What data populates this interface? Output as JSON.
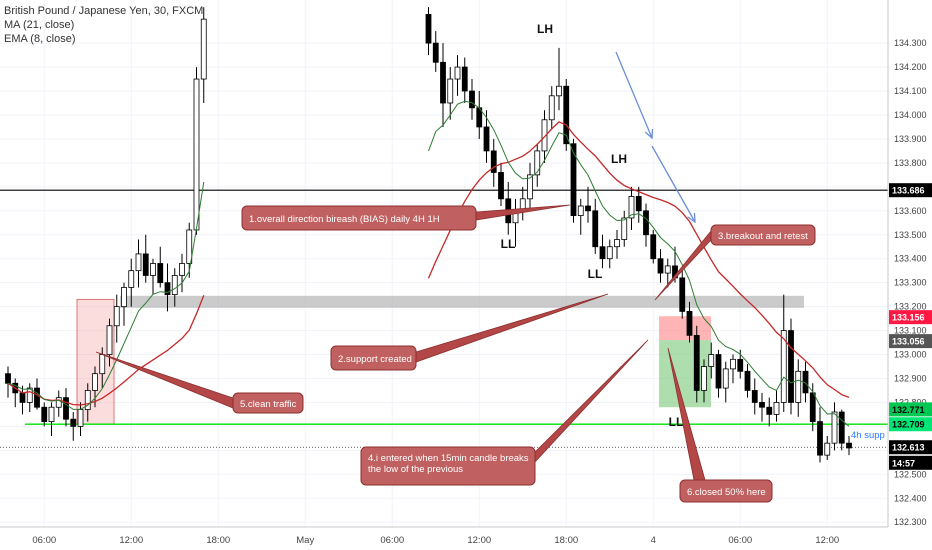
{
  "legend": {
    "symbol": "British Pound / Japanese Yen, 30, FXCM",
    "ma": "MA (21, close)",
    "ema": "EMA (8, close)"
  },
  "chart_data": {
    "type": "candlestick",
    "symbol": "GBP/JPY",
    "timeframe": "30",
    "y_ticks": [
      "134.300",
      "134.200",
      "134.100",
      "134.000",
      "133.900",
      "133.800",
      "133.700",
      "133.600",
      "133.500",
      "133.400",
      "133.300",
      "133.200",
      "133.100",
      "133.000",
      "132.900",
      "132.800",
      "132.700",
      "132.600",
      "132.500",
      "132.400",
      "132.300"
    ],
    "ylim": [
      132.28,
      134.48
    ],
    "x_ticks": [
      "06:00",
      "12:00",
      "18:00",
      "May",
      "06:00",
      "12:00",
      "18:00",
      "4",
      "06:00",
      "12:00"
    ],
    "x_tick_index": [
      5,
      17,
      29,
      41,
      53,
      65,
      77,
      89,
      101,
      113
    ],
    "price_tags": [
      {
        "value": 133.686,
        "text": "133.686",
        "bg": "#000000",
        "fg": "#ffffff"
      },
      {
        "value": 133.156,
        "text": "133.156",
        "bg": "#ff1744",
        "fg": "#ffffff"
      },
      {
        "value": 133.056,
        "text": "133.056",
        "bg": "#555555",
        "fg": "#ffffff"
      },
      {
        "value": 132.771,
        "text": "132.771",
        "bg": "#00c853",
        "fg": "#000000"
      },
      {
        "value": 132.709,
        "text": "132.709",
        "bg": "#00e676",
        "fg": "#000000"
      },
      {
        "value": 132.613,
        "text": "132.613",
        "bg": "#000000",
        "fg": "#ffffff"
      },
      {
        "value": 132.548,
        "text": "14:57",
        "bg": "#000000",
        "fg": "#ffffff"
      }
    ],
    "levels": {
      "resistance": 133.686,
      "support_4h": 132.709,
      "last_price": 132.613,
      "support_4h_label": "4h supp"
    },
    "swing_labels": [
      "LH",
      "LH",
      "LL",
      "LL",
      "LL"
    ],
    "annotations": [
      "1.overall direction bireash (BIAS) daily 4H 1H",
      "2.support created",
      "3.breakout and retest",
      "4.i entered when 15min candle breaks the low of the previous",
      "5.clean traffic",
      "6.closed 50% here"
    ],
    "candles": [
      [
        132.92,
        132.95,
        132.82,
        132.88
      ],
      [
        132.88,
        132.9,
        132.78,
        132.84
      ],
      [
        132.84,
        132.87,
        132.75,
        132.8
      ],
      [
        132.8,
        132.88,
        132.76,
        132.86
      ],
      [
        132.86,
        132.9,
        132.77,
        132.78
      ],
      [
        132.78,
        132.8,
        132.7,
        132.72
      ],
      [
        132.72,
        132.8,
        132.66,
        132.78
      ],
      [
        132.78,
        132.85,
        132.74,
        132.82
      ],
      [
        132.82,
        132.86,
        132.7,
        132.73
      ],
      [
        132.73,
        132.76,
        132.64,
        132.7
      ],
      [
        132.7,
        132.8,
        132.66,
        132.77
      ],
      [
        132.77,
        132.88,
        132.72,
        132.85
      ],
      [
        132.85,
        132.95,
        132.78,
        132.92
      ],
      [
        132.92,
        133.03,
        132.86,
        133.0
      ],
      [
        133.0,
        133.15,
        132.95,
        133.12
      ],
      [
        133.12,
        133.25,
        133.05,
        133.2
      ],
      [
        133.2,
        133.3,
        133.12,
        133.28
      ],
      [
        133.28,
        133.4,
        133.2,
        133.35
      ],
      [
        133.35,
        133.48,
        133.28,
        133.42
      ],
      [
        133.42,
        133.5,
        133.3,
        133.33
      ],
      [
        133.33,
        133.4,
        133.25,
        133.38
      ],
      [
        133.38,
        133.45,
        133.28,
        133.3
      ],
      [
        133.3,
        133.38,
        133.18,
        133.25
      ],
      [
        133.25,
        133.36,
        133.2,
        133.33
      ],
      [
        133.33,
        133.42,
        133.26,
        133.38
      ],
      [
        133.38,
        133.55,
        133.32,
        133.52
      ],
      [
        133.52,
        134.2,
        133.5,
        134.15
      ],
      [
        134.15,
        134.45,
        134.05,
        134.4
      ]
    ],
    "candles_b": [
      [
        134.42,
        134.45,
        134.25,
        134.3
      ],
      [
        134.3,
        134.35,
        134.18,
        134.22
      ],
      [
        134.22,
        134.3,
        133.95,
        134.05
      ],
      [
        134.05,
        134.2,
        133.98,
        134.15
      ],
      [
        134.15,
        134.25,
        134.08,
        134.2
      ],
      [
        134.2,
        134.24,
        134.05,
        134.1
      ],
      [
        134.1,
        134.15,
        133.98,
        134.03
      ],
      [
        134.03,
        134.1,
        133.9,
        133.95
      ],
      [
        133.95,
        134.02,
        133.8,
        133.85
      ],
      [
        133.85,
        133.9,
        133.7,
        133.76
      ],
      [
        133.76,
        133.8,
        133.62,
        133.65
      ],
      [
        133.65,
        133.72,
        133.5,
        133.55
      ],
      [
        133.55,
        133.65,
        133.45,
        133.6
      ],
      [
        133.6,
        133.7,
        133.56,
        133.65
      ],
      [
        133.65,
        133.8,
        133.6,
        133.75
      ],
      [
        133.75,
        133.88,
        133.7,
        133.85
      ],
      [
        133.85,
        134.02,
        133.8,
        133.98
      ],
      [
        133.98,
        134.12,
        133.94,
        134.08
      ],
      [
        134.08,
        134.28,
        134.02,
        134.12
      ],
      [
        134.12,
        134.15,
        133.85,
        133.88
      ],
      [
        133.88,
        133.9,
        133.55,
        133.58
      ],
      [
        133.58,
        133.65,
        133.5,
        133.62
      ],
      [
        133.62,
        133.7,
        133.55,
        133.6
      ],
      [
        133.6,
        133.65,
        133.42,
        133.45
      ],
      [
        133.45,
        133.5,
        133.36,
        133.4
      ],
      [
        133.4,
        133.48,
        133.36,
        133.45
      ],
      [
        133.45,
        133.52,
        133.4,
        133.48
      ],
      [
        133.48,
        133.6,
        133.45,
        133.57
      ],
      [
        133.57,
        133.7,
        133.52,
        133.66
      ],
      [
        133.66,
        133.7,
        133.55,
        133.6
      ],
      [
        133.6,
        133.63,
        133.45,
        133.5
      ],
      [
        133.5,
        133.52,
        133.38,
        133.4
      ],
      [
        133.4,
        133.44,
        133.3,
        133.34
      ],
      [
        133.34,
        133.4,
        133.28,
        133.37
      ],
      [
        133.37,
        133.45,
        133.3,
        133.32
      ],
      [
        133.32,
        133.35,
        133.15,
        133.18
      ],
      [
        133.18,
        133.22,
        133.05,
        133.08
      ],
      [
        133.08,
        133.12,
        132.8,
        132.85
      ],
      [
        132.85,
        132.98,
        132.8,
        132.95
      ],
      [
        132.95,
        133.05,
        132.9,
        133.0
      ],
      [
        133.0,
        133.02,
        132.82,
        132.86
      ],
      [
        132.86,
        132.97,
        132.8,
        132.94
      ],
      [
        132.94,
        133.0,
        132.88,
        132.98
      ],
      [
        132.98,
        133.02,
        132.9,
        132.93
      ],
      [
        132.93,
        132.96,
        132.82,
        132.85
      ],
      [
        132.85,
        132.9,
        132.75,
        132.8
      ],
      [
        132.8,
        132.84,
        132.72,
        132.78
      ],
      [
        132.78,
        132.82,
        132.7,
        132.75
      ],
      [
        132.75,
        132.85,
        132.72,
        132.8
      ],
      [
        132.8,
        133.25,
        132.76,
        133.1
      ],
      [
        133.1,
        133.15,
        132.75,
        132.8
      ],
      [
        132.8,
        132.98,
        132.74,
        132.93
      ],
      [
        132.93,
        132.97,
        132.8,
        132.84
      ],
      [
        132.84,
        132.88,
        132.68,
        132.72
      ],
      [
        132.72,
        132.78,
        132.55,
        132.58
      ],
      [
        132.58,
        132.66,
        132.56,
        132.63
      ],
      [
        132.63,
        132.8,
        132.6,
        132.76
      ],
      [
        132.76,
        132.77,
        132.6,
        132.63
      ],
      [
        132.63,
        132.66,
        132.58,
        132.61
      ]
    ]
  }
}
